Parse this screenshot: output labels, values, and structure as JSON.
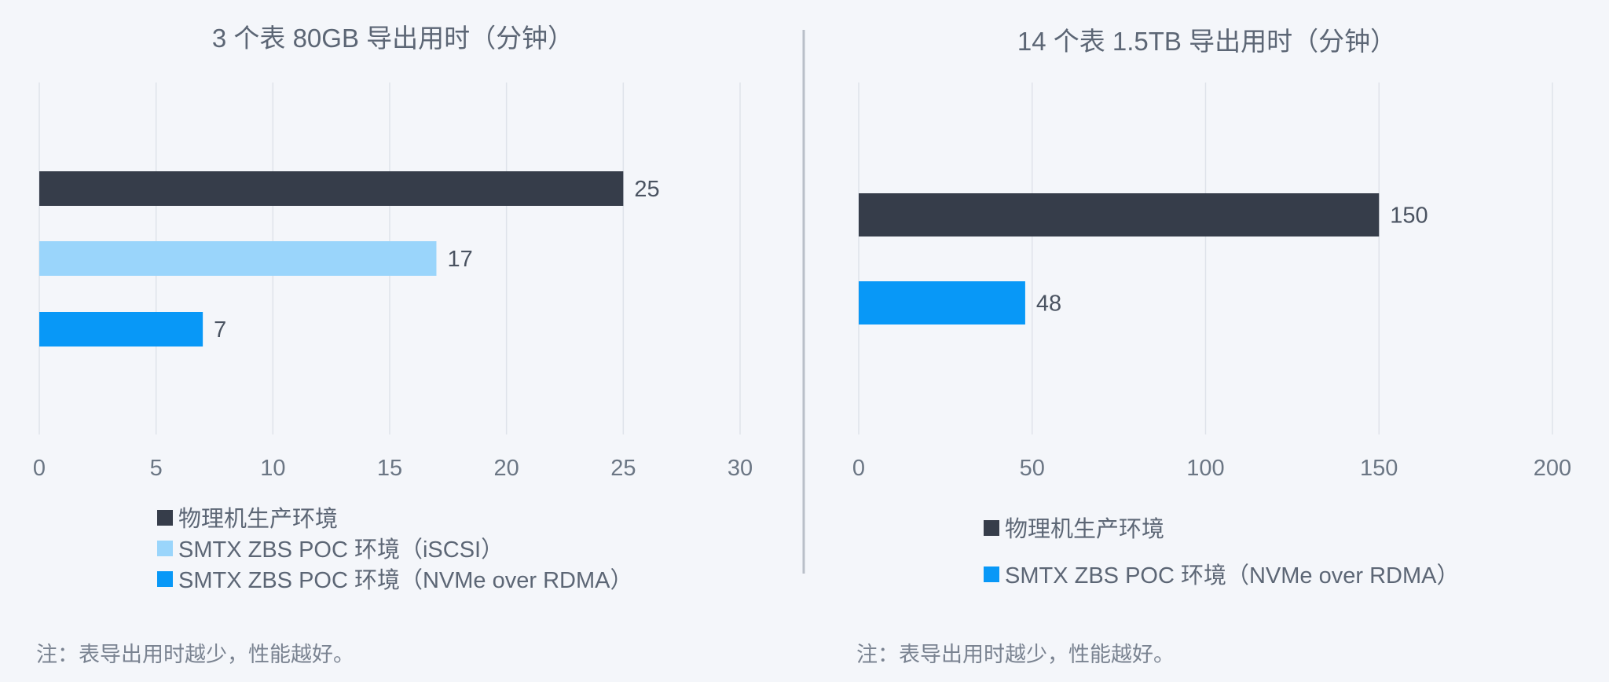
{
  "chart_data": [
    {
      "type": "bar",
      "orientation": "horizontal",
      "title": "3 个表 80GB 导出用时（分钟）",
      "xlim": [
        0,
        30
      ],
      "xticks": [
        0,
        5,
        10,
        15,
        20,
        25,
        30
      ],
      "grid": true,
      "legend_placement": "bottom",
      "series": [
        {
          "name": "物理机生产环境",
          "value": 25,
          "color": "#363d4a"
        },
        {
          "name": "SMTX ZBS POC 环境（iSCSI）",
          "value": 17,
          "color": "#9ad5fb"
        },
        {
          "name": "SMTX ZBS POC 环境（NVMe over RDMA）",
          "value": 7,
          "color": "#0898f7"
        }
      ],
      "note": "注：表导出用时越少，性能越好。"
    },
    {
      "type": "bar",
      "orientation": "horizontal",
      "title": "14 个表 1.5TB 导出用时（分钟）",
      "xlim": [
        0,
        200
      ],
      "xticks": [
        0,
        50,
        100,
        150,
        200
      ],
      "grid": true,
      "legend_placement": "bottom",
      "series": [
        {
          "name": "物理机生产环境",
          "value": 150,
          "color": "#363d4a"
        },
        {
          "name": "SMTX ZBS POC 环境（NVMe over RDMA）",
          "value": 48,
          "color": "#0898f7"
        }
      ],
      "note": "注：表导出用时越少，性能越好。"
    }
  ]
}
